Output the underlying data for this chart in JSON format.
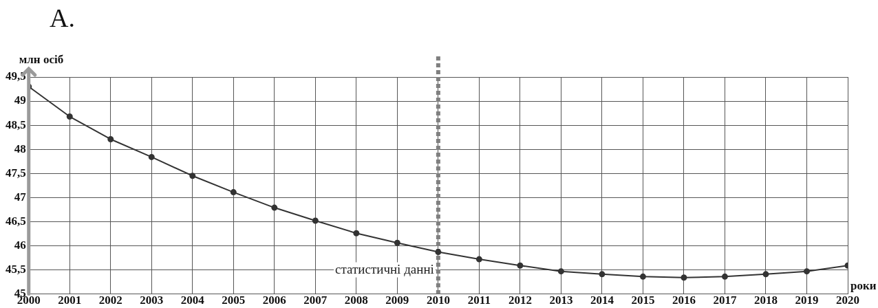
{
  "chart_data": {
    "type": "line",
    "title": "А.",
    "ylabel": "млн осіб",
    "xlabel": "роки",
    "x": [
      2000,
      2001,
      2002,
      2003,
      2004,
      2005,
      2006,
      2007,
      2008,
      2009,
      2010,
      2011,
      2012,
      2013,
      2014,
      2015,
      2016,
      2017,
      2018,
      2019,
      2020
    ],
    "series": [
      {
        "color": "#333333",
        "values": [
          49.3,
          48.68,
          48.21,
          47.84,
          47.45,
          47.11,
          46.79,
          46.52,
          46.26,
          46.06,
          45.87,
          45.72,
          45.59,
          45.47,
          45.41,
          45.36,
          45.34,
          45.36,
          45.41,
          45.47,
          45.59
        ]
      }
    ],
    "xlim": [
      2000,
      2020
    ],
    "xticks": [
      2000,
      2001,
      2002,
      2003,
      2004,
      2005,
      2006,
      2007,
      2008,
      2009,
      2010,
      2011,
      2012,
      2013,
      2014,
      2015,
      2016,
      2017,
      2018,
      2019,
      2020
    ],
    "ylim": [
      45,
      49.5
    ],
    "yticks": [
      {
        "value": 45,
        "label": "45"
      },
      {
        "value": 45.5,
        "label": "45,5"
      },
      {
        "value": 46,
        "label": "46"
      },
      {
        "value": 46.5,
        "label": "46,5"
      },
      {
        "value": 47,
        "label": "47"
      },
      {
        "value": 47.5,
        "label": "47,5"
      },
      {
        "value": 48,
        "label": "48"
      },
      {
        "value": 48.5,
        "label": "48,5"
      },
      {
        "value": 49,
        "label": "49"
      },
      {
        "value": 49.5,
        "label": "49,5"
      }
    ],
    "ref_lines": [
      {
        "axis": "x",
        "value": 2010,
        "label": "статистичні данні",
        "color": "#808080",
        "line_style": "dotted"
      }
    ],
    "grid": true,
    "legend": false,
    "marker": "circle",
    "line_style": "solid"
  }
}
